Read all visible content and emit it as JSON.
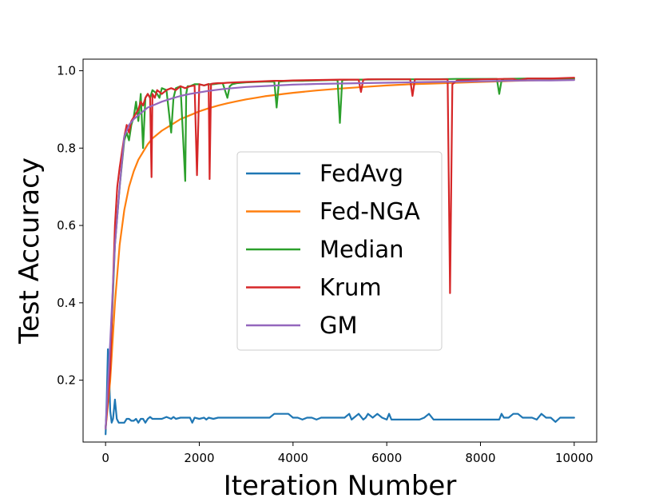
{
  "chart_data": {
    "type": "line",
    "title": "",
    "xlabel": "Iteration Number",
    "ylabel": "Test Accuracy",
    "xlim": [
      -480,
      10480
    ],
    "ylim": [
      0.04,
      1.03
    ],
    "xticks": [
      0,
      2000,
      4000,
      6000,
      8000,
      10000
    ],
    "xtick_labels": [
      "0",
      "2000",
      "4000",
      "6000",
      "8000",
      "10000"
    ],
    "yticks": [
      0.2,
      0.4,
      0.6,
      0.8,
      1.0
    ],
    "ytick_labels": [
      "0.2",
      "0.4",
      "0.6",
      "0.8",
      "1.0"
    ],
    "grid": false,
    "legend_position": "center",
    "series": [
      {
        "name": "FedAvg",
        "color": "#1f77b4",
        "x": [
          0,
          25,
          50,
          75,
          100,
          130,
          160,
          200,
          240,
          280,
          330,
          400,
          450,
          500,
          550,
          600,
          650,
          700,
          750,
          800,
          850,
          900,
          950,
          1000,
          1100,
          1200,
          1300,
          1400,
          1450,
          1500,
          1600,
          1700,
          1800,
          1850,
          1900,
          2000,
          2100,
          2150,
          2200,
          2300,
          2400,
          2500,
          2600,
          2700,
          2800,
          2900,
          3000,
          3100,
          3200,
          3300,
          3400,
          3500,
          3600,
          3700,
          3800,
          3900,
          4000,
          4100,
          4200,
          4300,
          4400,
          4500,
          4600,
          4700,
          4800,
          4900,
          5000,
          5100,
          5200,
          5250,
          5300,
          5400,
          5500,
          5550,
          5600,
          5700,
          5800,
          5900,
          6000,
          6050,
          6100,
          6200,
          6300,
          6400,
          6500,
          6600,
          6700,
          6800,
          6900,
          7000,
          7100,
          7200,
          7300,
          7400,
          7500,
          7600,
          7700,
          7800,
          7900,
          8000,
          8100,
          8200,
          8300,
          8400,
          8450,
          8500,
          8600,
          8700,
          8800,
          8900,
          9000,
          9100,
          9200,
          9300,
          9400,
          9500,
          9600,
          9700,
          9800,
          9900,
          10000
        ],
        "values": [
          0.06,
          0.15,
          0.28,
          0.22,
          0.12,
          0.09,
          0.1,
          0.15,
          0.1,
          0.09,
          0.09,
          0.09,
          0.1,
          0.1,
          0.095,
          0.095,
          0.1,
          0.09,
          0.1,
          0.1,
          0.09,
          0.1,
          0.105,
          0.1,
          0.1,
          0.1,
          0.105,
          0.1,
          0.105,
          0.1,
          0.103,
          0.103,
          0.103,
          0.09,
          0.103,
          0.1,
          0.103,
          0.098,
          0.103,
          0.1,
          0.103,
          0.103,
          0.103,
          0.103,
          0.103,
          0.103,
          0.103,
          0.103,
          0.103,
          0.103,
          0.103,
          0.103,
          0.113,
          0.113,
          0.113,
          0.113,
          0.103,
          0.103,
          0.098,
          0.103,
          0.103,
          0.098,
          0.103,
          0.103,
          0.103,
          0.103,
          0.103,
          0.103,
          0.113,
          0.098,
          0.103,
          0.113,
          0.098,
          0.103,
          0.113,
          0.103,
          0.113,
          0.103,
          0.098,
          0.113,
          0.098,
          0.098,
          0.098,
          0.098,
          0.098,
          0.098,
          0.098,
          0.103,
          0.113,
          0.098,
          0.098,
          0.098,
          0.098,
          0.098,
          0.098,
          0.098,
          0.098,
          0.098,
          0.098,
          0.098,
          0.098,
          0.098,
          0.098,
          0.098,
          0.113,
          0.103,
          0.103,
          0.113,
          0.113,
          0.103,
          0.103,
          0.103,
          0.098,
          0.113,
          0.103,
          0.103,
          0.092,
          0.103,
          0.103,
          0.103,
          0.103
        ]
      },
      {
        "name": "Fed-NGA",
        "color": "#ff7f0e",
        "x": [
          0,
          100,
          200,
          300,
          400,
          500,
          600,
          700,
          800,
          900,
          1000,
          1200,
          1400,
          1600,
          1800,
          2000,
          2200,
          2400,
          2600,
          2800,
          3000,
          3200,
          3400,
          3600,
          3800,
          4000,
          4500,
          5000,
          5500,
          6000,
          6500,
          7000,
          7500,
          8000,
          8500,
          9000,
          9500,
          10000
        ],
        "values": [
          0.075,
          0.2,
          0.4,
          0.55,
          0.64,
          0.7,
          0.74,
          0.77,
          0.79,
          0.81,
          0.825,
          0.845,
          0.86,
          0.875,
          0.885,
          0.895,
          0.903,
          0.91,
          0.916,
          0.921,
          0.926,
          0.93,
          0.934,
          0.937,
          0.94,
          0.943,
          0.949,
          0.954,
          0.958,
          0.962,
          0.965,
          0.967,
          0.969,
          0.971,
          0.973,
          0.975,
          0.976,
          0.977
        ]
      },
      {
        "name": "Median",
        "color": "#2ca02c",
        "x": [
          0,
          100,
          200,
          300,
          400,
          450,
          500,
          550,
          600,
          650,
          700,
          750,
          800,
          850,
          900,
          950,
          1000,
          1100,
          1150,
          1200,
          1300,
          1400,
          1450,
          1500,
          1600,
          1700,
          1720,
          1750,
          1800,
          1900,
          2000,
          2100,
          2200,
          2300,
          2400,
          2500,
          2600,
          2650,
          2700,
          2800,
          2900,
          3000,
          3200,
          3400,
          3600,
          3650,
          3700,
          3800,
          4000,
          4200,
          4500,
          4800,
          4950,
          5000,
          5050,
          5200,
          5500,
          6000,
          6500,
          7000,
          7500,
          8000,
          8350,
          8400,
          8450,
          8500,
          9000,
          9500,
          10000
        ],
        "values": [
          0.075,
          0.25,
          0.55,
          0.7,
          0.82,
          0.84,
          0.82,
          0.86,
          0.88,
          0.92,
          0.87,
          0.94,
          0.8,
          0.93,
          0.94,
          0.93,
          0.95,
          0.94,
          0.93,
          0.955,
          0.95,
          0.84,
          0.93,
          0.955,
          0.96,
          0.715,
          0.94,
          0.96,
          0.96,
          0.965,
          0.965,
          0.962,
          0.965,
          0.965,
          0.967,
          0.968,
          0.93,
          0.96,
          0.965,
          0.968,
          0.969,
          0.97,
          0.971,
          0.972,
          0.972,
          0.905,
          0.972,
          0.973,
          0.974,
          0.974,
          0.975,
          0.976,
          0.976,
          0.865,
          0.976,
          0.977,
          0.977,
          0.978,
          0.978,
          0.978,
          0.979,
          0.979,
          0.979,
          0.94,
          0.975,
          0.979,
          0.98,
          0.98,
          0.98
        ]
      },
      {
        "name": "Krum",
        "color": "#d62728",
        "x": [
          0,
          100,
          150,
          200,
          250,
          300,
          350,
          400,
          450,
          500,
          550,
          600,
          650,
          700,
          750,
          800,
          850,
          900,
          950,
          980,
          1000,
          1050,
          1100,
          1200,
          1300,
          1400,
          1500,
          1600,
          1700,
          1800,
          1900,
          1950,
          2000,
          2100,
          2200,
          2220,
          2250,
          2300,
          2400,
          2500,
          2600,
          2800,
          3000,
          3200,
          3400,
          3600,
          3800,
          4000,
          4500,
          5000,
          5400,
          5450,
          5500,
          5600,
          6000,
          6500,
          6550,
          6600,
          7000,
          7300,
          7350,
          7400,
          7450,
          7500,
          8000,
          8500,
          8700,
          8800,
          9000,
          9500,
          10000
        ],
        "values": [
          0.075,
          0.23,
          0.42,
          0.6,
          0.7,
          0.75,
          0.79,
          0.83,
          0.86,
          0.84,
          0.87,
          0.88,
          0.89,
          0.9,
          0.92,
          0.91,
          0.93,
          0.94,
          0.93,
          0.725,
          0.94,
          0.93,
          0.95,
          0.94,
          0.95,
          0.955,
          0.95,
          0.96,
          0.955,
          0.96,
          0.962,
          0.73,
          0.965,
          0.962,
          0.966,
          0.72,
          0.966,
          0.967,
          0.968,
          0.968,
          0.969,
          0.97,
          0.971,
          0.972,
          0.973,
          0.974,
          0.974,
          0.975,
          0.976,
          0.977,
          0.977,
          0.945,
          0.977,
          0.978,
          0.978,
          0.978,
          0.935,
          0.978,
          0.978,
          0.978,
          0.425,
          0.965,
          0.97,
          0.975,
          0.978,
          0.979,
          0.979,
          0.975,
          0.98,
          0.98,
          0.982
        ]
      },
      {
        "name": "GM",
        "color": "#9467bd",
        "x": [
          0,
          100,
          200,
          300,
          400,
          500,
          600,
          700,
          800,
          900,
          1000,
          1200,
          1400,
          1600,
          1800,
          2000,
          2200,
          2400,
          2600,
          2800,
          3000,
          3500,
          4000,
          4500,
          5000,
          5500,
          6000,
          6500,
          7000,
          7500,
          8000,
          8500,
          9000,
          9500,
          10000
        ],
        "values": [
          0.075,
          0.3,
          0.55,
          0.7,
          0.83,
          0.86,
          0.875,
          0.885,
          0.895,
          0.905,
          0.91,
          0.92,
          0.928,
          0.935,
          0.94,
          0.944,
          0.948,
          0.951,
          0.954,
          0.956,
          0.958,
          0.961,
          0.964,
          0.966,
          0.967,
          0.968,
          0.969,
          0.97,
          0.971,
          0.972,
          0.973,
          0.974,
          0.975,
          0.975,
          0.976
        ]
      }
    ]
  }
}
